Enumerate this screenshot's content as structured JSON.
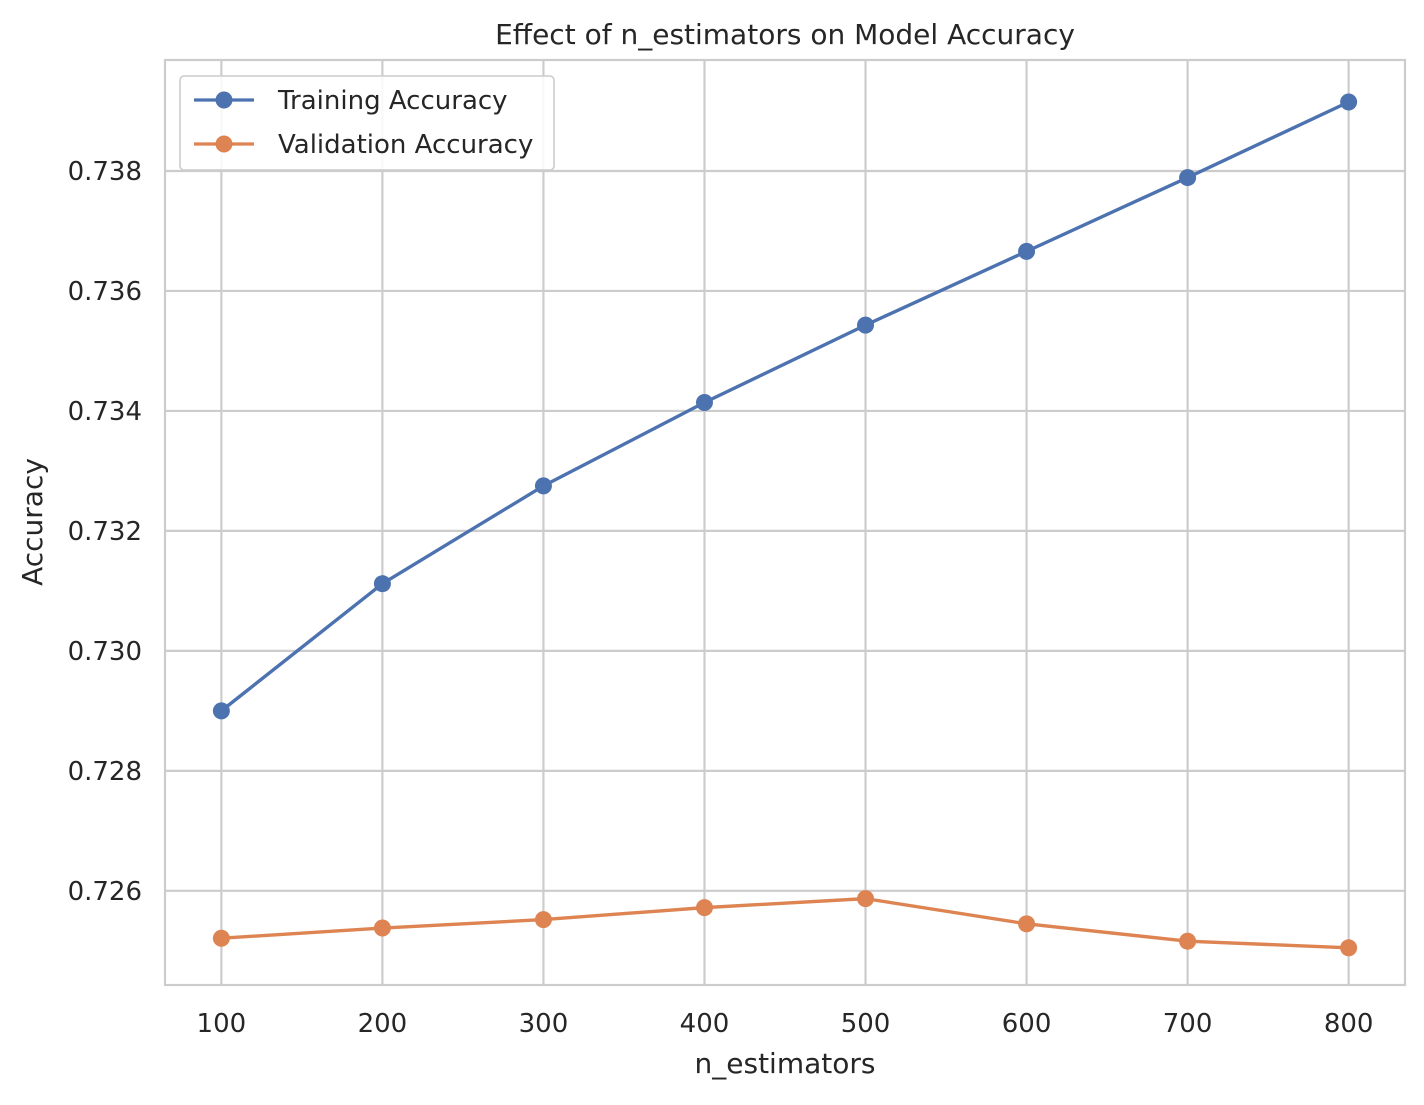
{
  "chart_data": {
    "type": "line",
    "title": "Effect of n_estimators on Model Accuracy",
    "xlabel": "n_estimators",
    "ylabel": "Accuracy",
    "x": [
      100,
      200,
      300,
      400,
      500,
      600,
      700,
      800
    ],
    "xlim": [
      65,
      835
    ],
    "ylim": [
      0.72443,
      0.73985
    ],
    "xticks": [
      100,
      200,
      300,
      400,
      500,
      600,
      700,
      800
    ],
    "yticks": [
      0.726,
      0.728,
      0.73,
      0.732,
      0.734,
      0.736,
      0.738
    ],
    "grid": true,
    "legend_position": "top-left",
    "series": [
      {
        "name": "Training Accuracy",
        "color": "#4c72b0",
        "values": [
          0.729,
          0.73112,
          0.73275,
          0.73414,
          0.73543,
          0.73666,
          0.73789,
          0.73915
        ]
      },
      {
        "name": "Validation Accuracy",
        "color": "#dd8452",
        "values": [
          0.72521,
          0.72538,
          0.72552,
          0.72572,
          0.72587,
          0.72545,
          0.72516,
          0.72505
        ]
      }
    ]
  }
}
